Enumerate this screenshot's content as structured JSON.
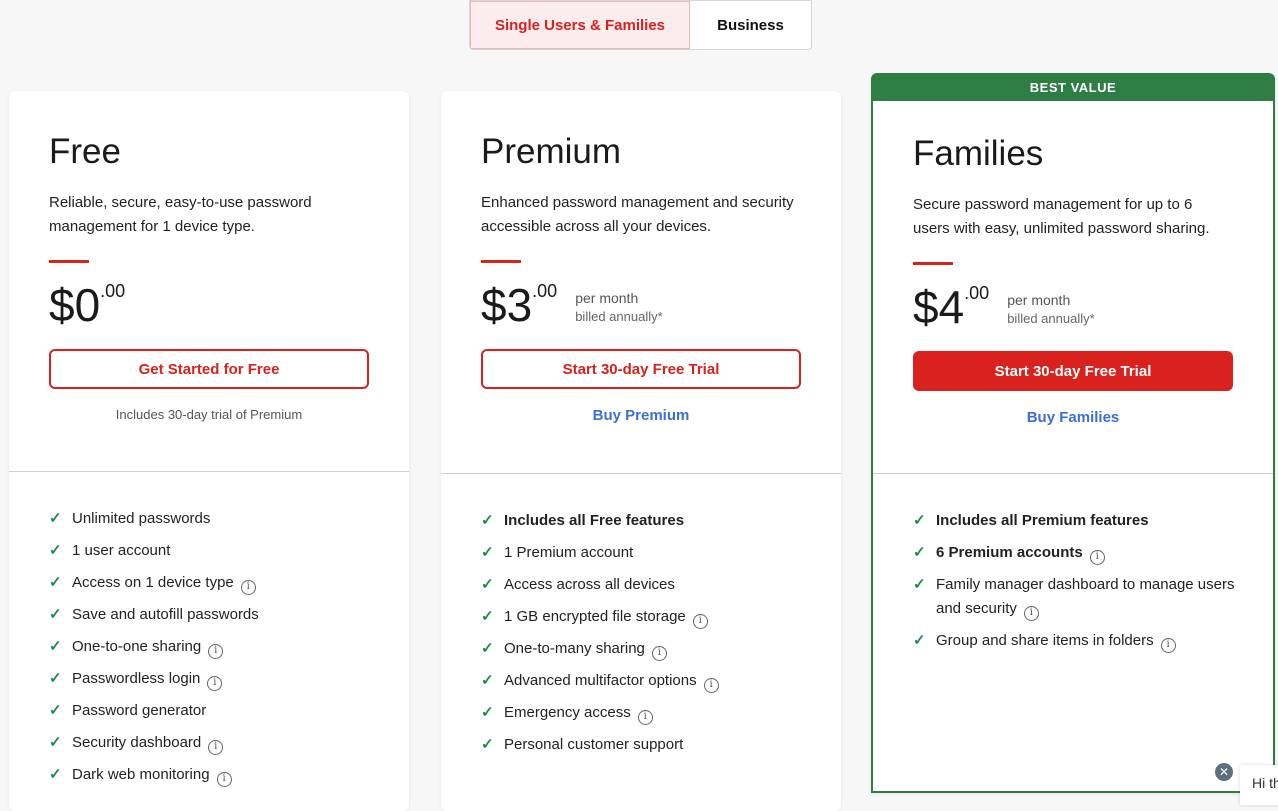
{
  "toggle": {
    "options": [
      "Single Users & Families",
      "Business"
    ],
    "selected": "Single Users & Families"
  },
  "plans": [
    {
      "name": "Free",
      "description": "Reliable, secure, easy-to-use password management for 1 device type.",
      "price": "$0",
      "cents": ".00",
      "cta": "Get Started for Free",
      "note": "Includes 30-day trial of Premium",
      "features": [
        {
          "text": "Unlimited passwords"
        },
        {
          "text": "1 user account"
        },
        {
          "text": "Access on 1 device type",
          "info": true
        },
        {
          "text": "Save and autofill passwords"
        },
        {
          "text": "One-to-one sharing",
          "info": true
        },
        {
          "text": "Passwordless login",
          "info": true
        },
        {
          "text": "Password generator"
        },
        {
          "text": "Security dashboard",
          "info": true
        },
        {
          "text": "Dark web monitoring",
          "info": true
        }
      ]
    },
    {
      "name": "Premium",
      "description": "Enhanced password management and security accessible across all your devices.",
      "price": "$3",
      "cents": ".00",
      "period": "per month",
      "billing": "billed annually*",
      "cta": "Start 30-day Free Trial",
      "buy": "Buy Premium",
      "features": [
        {
          "text": "Includes all Free features",
          "bold": true
        },
        {
          "text": "1 Premium account"
        },
        {
          "text": "Access across all devices"
        },
        {
          "text": "1 GB encrypted file storage",
          "info": true
        },
        {
          "text": "One-to-many sharing",
          "info": true
        },
        {
          "text": "Advanced multifactor options",
          "info": true
        },
        {
          "text": "Emergency access",
          "info": true
        },
        {
          "text": "Personal customer support"
        }
      ]
    },
    {
      "name": "Families",
      "badge": "BEST VALUE",
      "description": "Secure password management for up to 6 users with easy, unlimited password sharing.",
      "price": "$4",
      "cents": ".00",
      "period": "per month",
      "billing": "billed annually*",
      "cta": "Start 30-day Free Trial",
      "buy": "Buy Families",
      "features": [
        {
          "text": "Includes all Premium features",
          "bold": true
        },
        {
          "text": "6 Premium accounts",
          "bold": true,
          "info": true
        },
        {
          "text": "Family manager dashboard to manage users and security",
          "info": true
        },
        {
          "text": "Group and share items in folders",
          "info": true
        }
      ]
    }
  ],
  "chat": {
    "text": "Hi th"
  },
  "colors": {
    "accent": "#d9211e",
    "best_value": "#2e7d45",
    "link": "#3b6fd4"
  }
}
